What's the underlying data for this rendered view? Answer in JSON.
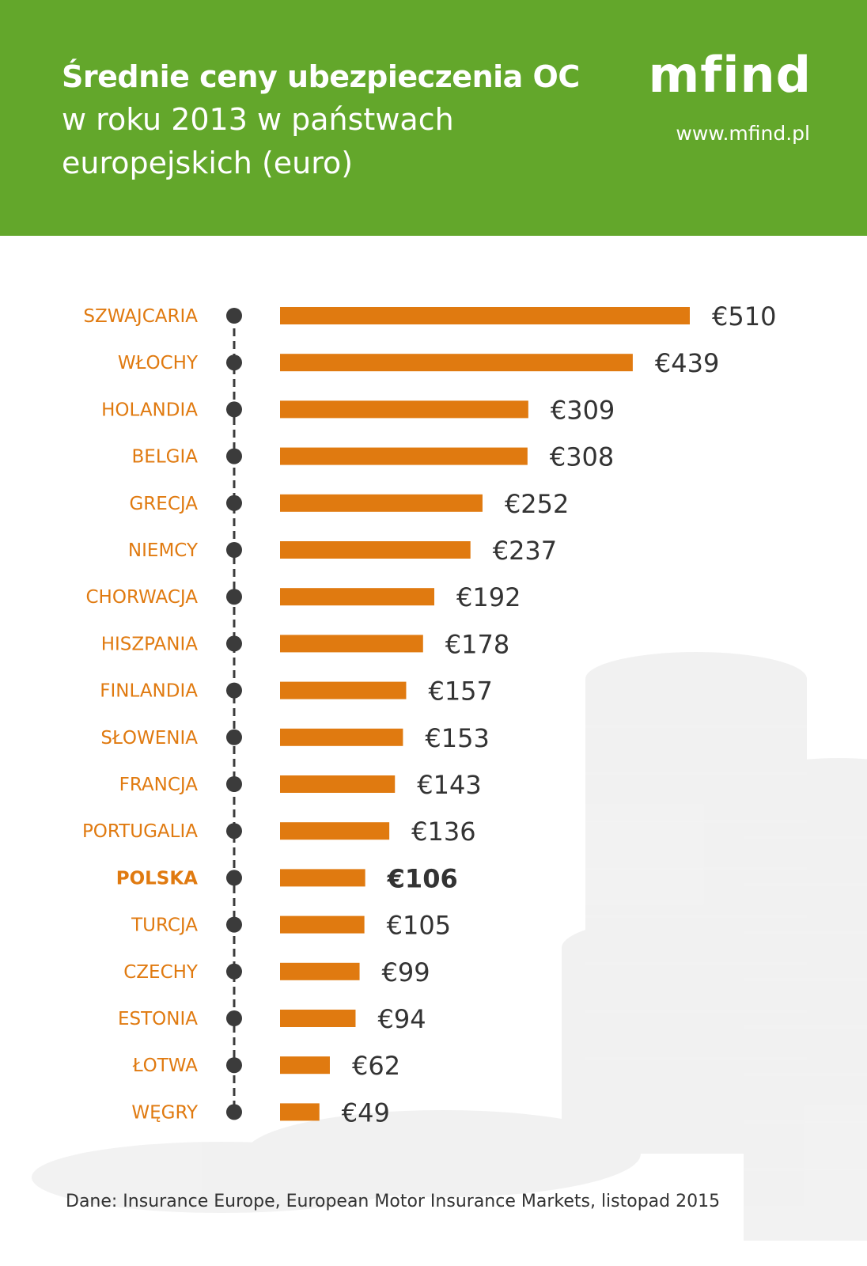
{
  "header": {
    "title_line1": "Średnie ceny ubezpieczenia OC",
    "title_rest": "w roku 2013 w państwach europejskich (euro)",
    "logo_text": "mfind",
    "url": "www.mfind.pl"
  },
  "footer": {
    "source": "Dane: Insurance Europe, European Motor Insurance Markets, listopad 2015"
  },
  "colors": {
    "header_bg": "#63a72b",
    "bar": "#e07a10",
    "label": "#e07a10",
    "value": "#333333",
    "timeline": "#3b3b3b"
  },
  "chart_data": {
    "type": "bar",
    "orientation": "horizontal",
    "title": "Średnie ceny ubezpieczenia OC w roku 2013 w państwach europejskich (euro)",
    "categories": [
      "SZWAJCARIA",
      "WŁOCHY",
      "HOLANDIA",
      "BELGIA",
      "GRECJA",
      "NIEMCY",
      "CHORWACJA",
      "HISZPANIA",
      "FINLANDIA",
      "SŁOWENIA",
      "FRANCJA",
      "PORTUGALIA",
      "POLSKA",
      "TURCJA",
      "CZECHY",
      "ESTONIA",
      "ŁOTWA",
      "WĘGRY"
    ],
    "values": [
      510,
      439,
      309,
      308,
      252,
      237,
      192,
      178,
      157,
      153,
      143,
      136,
      106,
      105,
      99,
      94,
      62,
      49
    ],
    "value_labels": [
      "€510",
      "€439",
      "€309",
      "€308",
      "€252",
      "€237",
      "€192",
      "€178",
      "€157",
      "€153",
      "€143",
      "€136",
      "€106",
      "€105",
      "€99",
      "€94",
      "€62",
      "€49"
    ],
    "highlighted": "POLSKA",
    "unit": "euro",
    "xlim": [
      0,
      510
    ],
    "grid": false,
    "legend": "none"
  }
}
